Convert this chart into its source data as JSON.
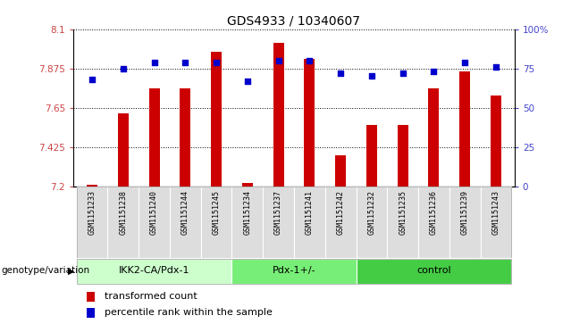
{
  "title": "GDS4933 / 10340607",
  "samples": [
    "GSM1151233",
    "GSM1151238",
    "GSM1151240",
    "GSM1151244",
    "GSM1151245",
    "GSM1151234",
    "GSM1151237",
    "GSM1151241",
    "GSM1151242",
    "GSM1151232",
    "GSM1151235",
    "GSM1151236",
    "GSM1151239",
    "GSM1151243"
  ],
  "bar_values": [
    7.21,
    7.62,
    7.76,
    7.76,
    7.97,
    7.22,
    8.02,
    7.93,
    7.38,
    7.55,
    7.55,
    7.76,
    7.86,
    7.72
  ],
  "dot_values": [
    68,
    75,
    79,
    79,
    79,
    67,
    80,
    80,
    72,
    70,
    72,
    73,
    79,
    76
  ],
  "ylim_left": [
    7.2,
    8.1
  ],
  "ylim_right": [
    0,
    100
  ],
  "yticks_left": [
    7.2,
    7.425,
    7.65,
    7.875,
    8.1
  ],
  "yticks_right": [
    0,
    25,
    50,
    75,
    100
  ],
  "ytick_labels_left": [
    "7.2",
    "7.425",
    "7.65",
    "7.875",
    "8.1"
  ],
  "ytick_labels_right": [
    "0",
    "25",
    "50",
    "75",
    "100%"
  ],
  "bar_color": "#cc0000",
  "dot_color": "#0000cc",
  "bar_bottom": 7.2,
  "groups": [
    {
      "label": "IKK2-CA/Pdx-1",
      "start": 0,
      "end": 4,
      "color": "#ccffcc"
    },
    {
      "label": "Pdx-1+/-",
      "start": 5,
      "end": 8,
      "color": "#77ee77"
    },
    {
      "label": "control",
      "start": 9,
      "end": 13,
      "color": "#44cc44"
    }
  ],
  "legend_items": [
    {
      "label": "transformed count",
      "color": "#cc0000"
    },
    {
      "label": "percentile rank within the sample",
      "color": "#0000cc"
    }
  ],
  "xlabel_group": "genotype/variation",
  "bg_color": "#ffffff",
  "tick_label_color_left": "#cc4444",
  "tick_label_color_right": "#4444cc",
  "xtick_bg": "#dddddd"
}
